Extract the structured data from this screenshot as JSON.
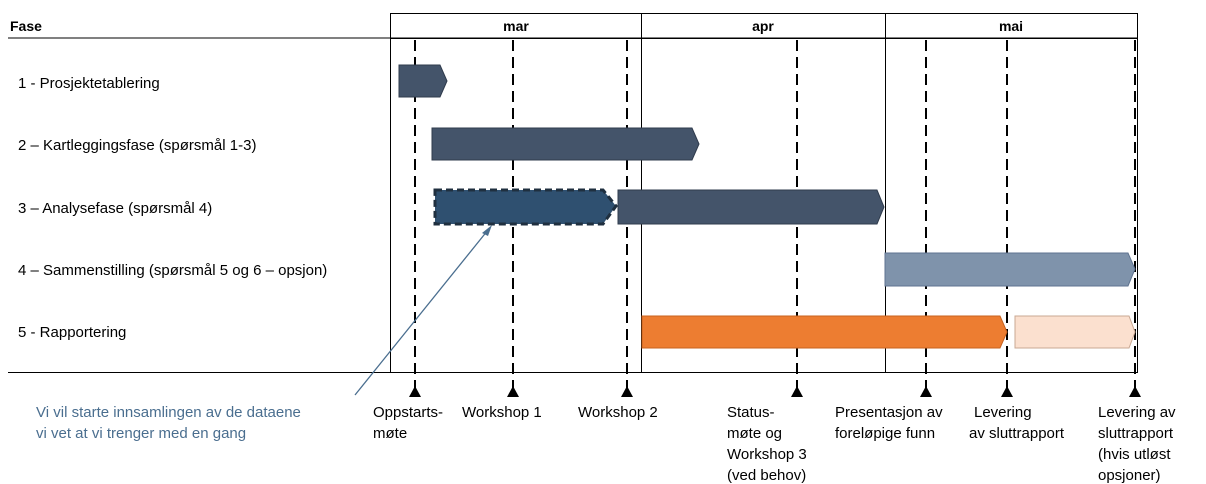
{
  "header": {
    "phase_col": "Fase",
    "months": [
      "mar",
      "apr",
      "mai"
    ]
  },
  "phases": [
    "1 - Prosjektetablering",
    "2 – Kartleggingsfase (spørsmål 1-3)",
    "3 – Analysefase (spørsmål 4)",
    "4 – Sammenstilling (spørsmål 5 og 6 – opsjon)",
    "5 - Rapportering"
  ],
  "milestones": [
    {
      "id": "oppstart",
      "lines": [
        "Oppstarts-",
        "møte"
      ]
    },
    {
      "id": "workshop1",
      "lines": [
        "Workshop 1"
      ]
    },
    {
      "id": "workshop2",
      "lines": [
        "Workshop 2"
      ]
    },
    {
      "id": "status",
      "lines": [
        "Status-",
        "møte og",
        "Workshop 3",
        "(ved behov)"
      ]
    },
    {
      "id": "presentasjon",
      "lines": [
        "Presentasjon av",
        "foreløpige funn"
      ]
    },
    {
      "id": "levering",
      "lines": [
        "Levering",
        "av sluttrapport"
      ]
    },
    {
      "id": "levering-opsjon",
      "lines": [
        "Levering av",
        "sluttrapport",
        "(hvis utløst",
        "opsjoner)"
      ]
    }
  ],
  "annotation": {
    "lines": [
      "Vi vil starte innsamlingen av de dataene",
      "vi vet at vi trenger med en gang"
    ]
  },
  "colors": {
    "dark_bar": "#44546a",
    "dashed_bar": "#2f5070",
    "light_blue_bar": "#7f93ab",
    "orange_bar": "#ed7d31",
    "peach_bar": "#fbe0cf",
    "annotation_text": "#4a6e8f"
  }
}
